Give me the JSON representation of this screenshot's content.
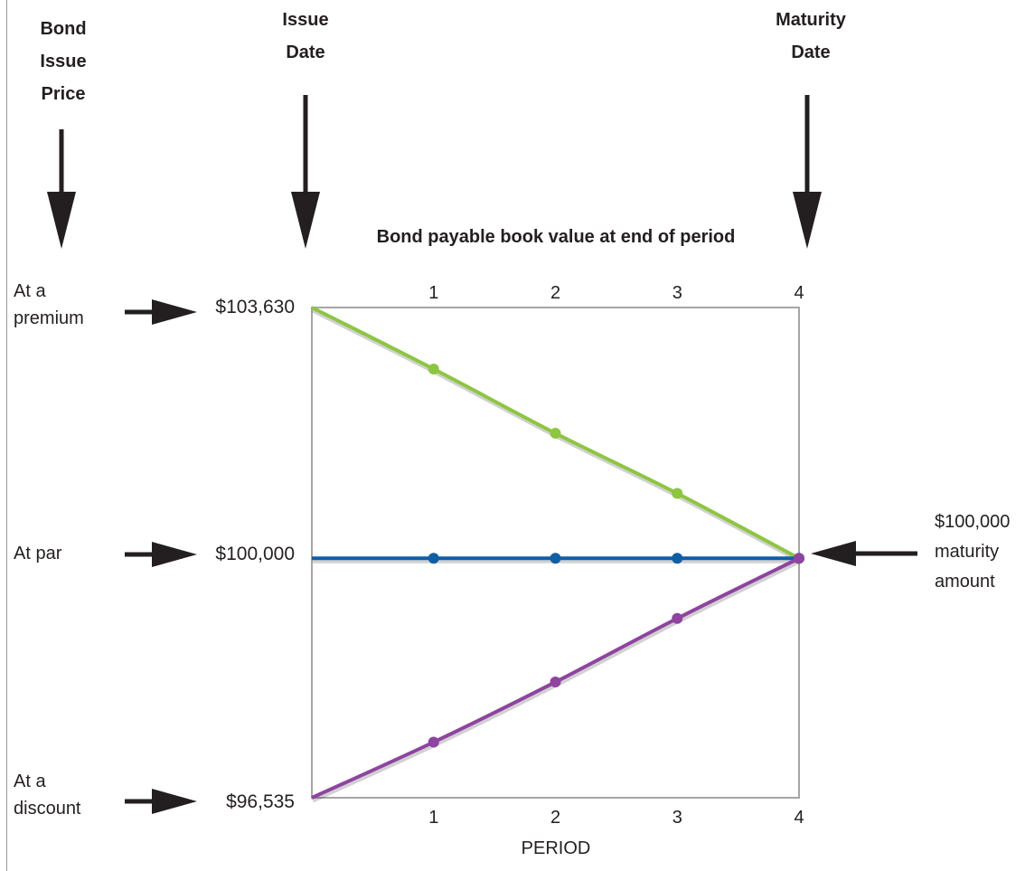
{
  "headers": {
    "issue_price": [
      "Bond",
      "Issue",
      "Price"
    ],
    "issue_date": [
      "Issue",
      "Date"
    ],
    "maturity_date": [
      "Maturity",
      "Date"
    ]
  },
  "rows": {
    "premium": {
      "label": [
        "At a",
        "premium"
      ],
      "price": "$103,630"
    },
    "par": {
      "label": [
        "At par"
      ],
      "price": "$100,000"
    },
    "discount": {
      "label": [
        "At a",
        "discount"
      ],
      "price": "$96,535"
    }
  },
  "maturity_note": [
    "$100,000",
    "maturity",
    "amount"
  ],
  "chart_data": {
    "type": "line",
    "title": "Bond payable book value at end of period",
    "xlabel": "PERIOD",
    "ylabel": "",
    "x": [
      0,
      1,
      2,
      3,
      4
    ],
    "x_tick_labels": [
      "1",
      "2",
      "3",
      "4"
    ],
    "ylim": [
      96535,
      103630
    ],
    "grid": false,
    "series": [
      {
        "key": "premium",
        "values": [
          103630,
          102740,
          101810,
          100940,
          100000
        ],
        "color": "#8dc63f"
      },
      {
        "key": "par",
        "values": [
          100000,
          100000,
          100000,
          100000,
          100000
        ],
        "color": "#0f5fa6"
      },
      {
        "key": "discount",
        "values": [
          96535,
          97340,
          98210,
          99130,
          100000
        ],
        "color": "#8e44a0"
      }
    ],
    "frame_color": "#a6a6a6"
  }
}
